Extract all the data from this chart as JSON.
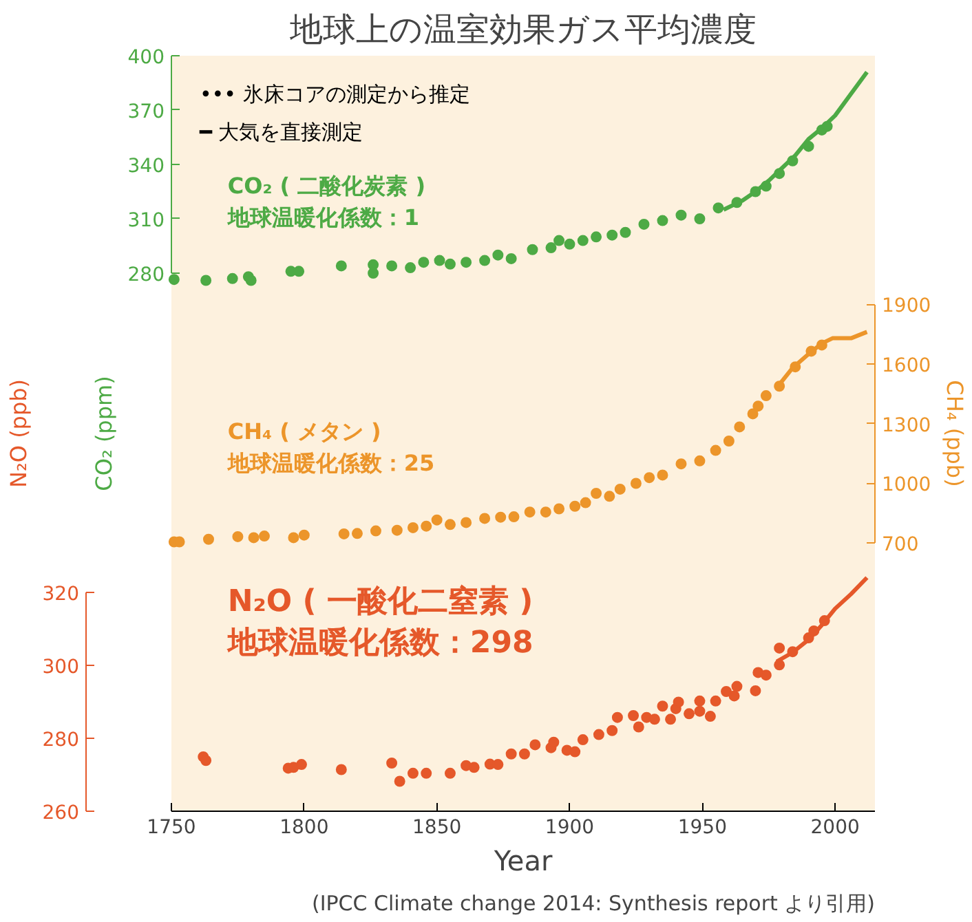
{
  "chart_data": {
    "type": "scatter",
    "title": "地球上の温室効果ガス平均濃度",
    "xlabel": "Year",
    "ylabel": "CO₂ (ppm)",
    "y2label": "CH₄ (ppb)",
    "y3label": "N₂O (ppb)",
    "annotations": [
      "••• 氷床コアの測定から推定",
      "━ 大気を直接測定",
      "(IPCC Climate change 2014: Synthesis report より引用)"
    ],
    "xlim": [
      1750,
      2015
    ],
    "xticks": [
      1750,
      1800,
      1850,
      1900,
      1950,
      2000
    ],
    "ylim": [
      -17,
      400
    ],
    "yticks": [
      280,
      310,
      340,
      370,
      400
    ],
    "y2lim": [
      -650,
      3150
    ],
    "y2ticks": [
      700,
      1000,
      1300,
      1600,
      1900
    ],
    "y3lim": [
      260,
      467
    ],
    "y3ticks": [
      260,
      280,
      300,
      320
    ],
    "legend": "top left",
    "grid": false,
    "series": [
      {
        "name": "CO₂ ( 二酸化炭素 )\n地球温暖化係数：1",
        "marker": "circle",
        "axis": "y",
        "color": "#4daa45",
        "x": [
          1751,
          1763,
          1773,
          1779,
          1780,
          1795,
          1798,
          1814,
          1826,
          1826,
          1833,
          1840,
          1845,
          1851,
          1855,
          1861,
          1868,
          1873,
          1878,
          1886,
          1893,
          1896,
          1900,
          1905,
          1910,
          1916,
          1921,
          1928,
          1935,
          1942,
          1949,
          1956,
          1963,
          1970,
          1974,
          1979,
          1984,
          1990,
          1995,
          1997
        ],
        "values": [
          276.5,
          276,
          277,
          278,
          276,
          281,
          281,
          284,
          284.6,
          280,
          284,
          283,
          286,
          287,
          285,
          286,
          287,
          290,
          288,
          293,
          294,
          298,
          296,
          298,
          300,
          301,
          302.5,
          307,
          309,
          312,
          310,
          316,
          319,
          325,
          328,
          335,
          342,
          350,
          359,
          361
        ]
      },
      {
        "type": "line",
        "line_style": "solid",
        "axis": "y",
        "color": "#4daa45",
        "x": [
          1958,
          1965,
          1970,
          1975,
          1980,
          1985,
          1990,
          1995,
          2000,
          2006,
          2012
        ],
        "values": [
          315,
          320,
          325,
          331,
          338,
          345,
          354,
          360,
          367,
          379,
          391
        ]
      },
      {
        "name": "CH₄ ( メタン )\n地球温暖化係数：25",
        "marker": "circle",
        "axis": "y2",
        "color": "#ec952a",
        "x": [
          1751,
          1753,
          1764,
          1775,
          1781,
          1785,
          1796,
          1800,
          1815,
          1820,
          1827,
          1835,
          1841,
          1846,
          1850,
          1855,
          1861,
          1868,
          1874,
          1879,
          1885,
          1891,
          1896,
          1902,
          1906,
          1910,
          1915,
          1919,
          1925,
          1930,
          1935,
          1942,
          1949,
          1955,
          1960,
          1964,
          1969,
          1971,
          1974,
          1979,
          1985,
          1991,
          1995
        ],
        "values": [
          705,
          705,
          718,
          731,
          726,
          734,
          726,
          739,
          745,
          747,
          760,
          763,
          776,
          784,
          815,
          792,
          802,
          823,
          829,
          831,
          855,
          855,
          871,
          884,
          902,
          949,
          934,
          970,
          999,
          1028,
          1041,
          1097,
          1112,
          1165,
          1212,
          1283,
          1349,
          1388,
          1440,
          1488,
          1585,
          1664,
          1695
        ]
      },
      {
        "type": "line",
        "line_style": "solid",
        "axis": "y2",
        "color": "#ec952a",
        "x": [
          1978,
          1984,
          1990,
          1995,
          1999,
          2006,
          2012
        ],
        "values": [
          1480,
          1580,
          1650,
          1703,
          1729,
          1729,
          1761
        ]
      },
      {
        "name": "N₂O ( 一酸化二窒素 )\n地球温暖化係数：298",
        "marker": "circle",
        "axis": "y3",
        "color": "#e5582a",
        "x": [
          1762,
          1763,
          1794,
          1796,
          1799,
          1814,
          1833,
          1836,
          1841,
          1846,
          1855,
          1861,
          1864,
          1870,
          1873,
          1878,
          1883,
          1887,
          1893,
          1894,
          1899,
          1902,
          1905,
          1911,
          1916,
          1918,
          1924,
          1926,
          1929,
          1932,
          1935,
          1938,
          1940,
          1941,
          1945,
          1949,
          1949,
          1953,
          1955,
          1959,
          1962,
          1963,
          1970,
          1971,
          1974,
          1979,
          1979,
          1984,
          1990,
          1992,
          1996
        ],
        "values": [
          274.9,
          273.9,
          271.8,
          272,
          272.8,
          271.4,
          273.2,
          268.2,
          270.4,
          270.4,
          270.4,
          272.5,
          272,
          272.9,
          272.8,
          275.7,
          275.7,
          278.2,
          277.4,
          278.9,
          276.7,
          276.3,
          279.6,
          281,
          282.1,
          285.7,
          286.2,
          283.1,
          285.7,
          285.2,
          288.8,
          285.2,
          288.1,
          289.9,
          286.7,
          290.2,
          287.4,
          286,
          290.2,
          292.8,
          291.6,
          294.2,
          293,
          298,
          297.3,
          304.7,
          300.1,
          303.7,
          307.5,
          309.4,
          312.2
        ]
      },
      {
        "type": "line",
        "line_style": "solid",
        "axis": "y3",
        "color": "#e5582a",
        "x": [
          1978,
          1984,
          1990,
          1995,
          2000,
          2006,
          2012
        ],
        "values": [
          301,
          303.5,
          307,
          311,
          315.5,
          319.5,
          324
        ]
      }
    ]
  }
}
